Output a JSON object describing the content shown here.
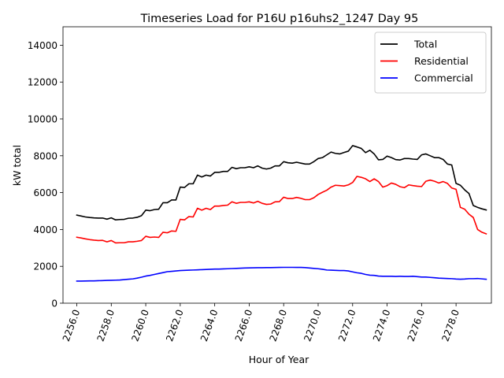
{
  "chart_data": {
    "type": "line",
    "title": "Timeseries Load for P16U p16uhs2_1247  Day 95",
    "xlabel": "Hour of Year",
    "ylabel": "kW total",
    "xlim": [
      2255.2,
      2280.05
    ],
    "ylim": [
      0,
      15000
    ],
    "xticks": [
      2256,
      2258,
      2260,
      2262,
      2264,
      2266,
      2268,
      2270,
      2272,
      2274,
      2276,
      2278
    ],
    "xtick_labels": [
      "2256.0",
      "2258.0",
      "2260.0",
      "2262.0",
      "2264.0",
      "2266.0",
      "2268.0",
      "2270.0",
      "2272.0",
      "2274.0",
      "2276.0",
      "2278.0"
    ],
    "yticks": [
      0,
      2000,
      4000,
      6000,
      8000,
      10000,
      12000,
      14000
    ],
    "ytick_labels": [
      "0",
      "2000",
      "4000",
      "6000",
      "8000",
      "10000",
      "12000",
      "14000"
    ],
    "legend_position": "top-right",
    "x": [
      2256.0,
      2256.25,
      2256.5,
      2256.75,
      2257.0,
      2257.25,
      2257.5,
      2257.75,
      2258.0,
      2258.25,
      2258.5,
      2258.75,
      2259.0,
      2259.25,
      2259.5,
      2259.75,
      2260.0,
      2260.25,
      2260.5,
      2260.75,
      2261.0,
      2261.25,
      2261.5,
      2261.75,
      2262.0,
      2262.25,
      2262.5,
      2262.75,
      2263.0,
      2263.25,
      2263.5,
      2263.75,
      2264.0,
      2264.25,
      2264.5,
      2264.75,
      2265.0,
      2265.25,
      2265.5,
      2265.75,
      2266.0,
      2266.25,
      2266.5,
      2266.75,
      2267.0,
      2267.25,
      2267.5,
      2267.75,
      2268.0,
      2268.25,
      2268.5,
      2268.75,
      2269.0,
      2269.25,
      2269.5,
      2269.75,
      2270.0,
      2270.25,
      2270.5,
      2270.75,
      2271.0,
      2271.25,
      2271.5,
      2271.75,
      2272.0,
      2272.25,
      2272.5,
      2272.75,
      2273.0,
      2273.25,
      2273.5,
      2273.75,
      2274.0,
      2274.25,
      2274.5,
      2274.75,
      2275.0,
      2275.25,
      2275.5,
      2275.75,
      2276.0,
      2276.25,
      2276.5,
      2276.75,
      2277.0,
      2277.25,
      2277.5,
      2277.75,
      2278.0,
      2278.25,
      2278.5,
      2278.75,
      2279.0,
      2279.25,
      2279.5,
      2279.75
    ],
    "series": [
      {
        "name": "Total",
        "color": "#000000",
        "values": [
          4780,
          4730,
          4680,
          4650,
          4630,
          4620,
          4620,
          4560,
          4630,
          4520,
          4540,
          4550,
          4610,
          4620,
          4660,
          4750,
          5050,
          5020,
          5080,
          5100,
          5450,
          5450,
          5600,
          5600,
          6300,
          6280,
          6480,
          6480,
          6950,
          6850,
          6950,
          6900,
          7100,
          7100,
          7150,
          7150,
          7370,
          7300,
          7350,
          7350,
          7400,
          7350,
          7450,
          7330,
          7280,
          7330,
          7450,
          7450,
          7680,
          7620,
          7600,
          7650,
          7600,
          7550,
          7550,
          7680,
          7850,
          7900,
          8050,
          8200,
          8130,
          8100,
          8180,
          8250,
          8550,
          8480,
          8400,
          8170,
          8300,
          8100,
          7780,
          7800,
          7980,
          7900,
          7790,
          7770,
          7850,
          7850,
          7820,
          7800,
          8050,
          8100,
          8000,
          7900,
          7900,
          7800,
          7550,
          7500,
          6500,
          6400,
          6150,
          5950,
          5300,
          5200,
          5120,
          5060
        ]
      },
      {
        "name": "Residential",
        "color": "#ff0000",
        "values": [
          3580,
          3540,
          3490,
          3450,
          3420,
          3400,
          3410,
          3330,
          3400,
          3270,
          3280,
          3280,
          3330,
          3330,
          3360,
          3400,
          3630,
          3570,
          3590,
          3570,
          3850,
          3820,
          3920,
          3900,
          4550,
          4520,
          4700,
          4680,
          5150,
          5050,
          5150,
          5080,
          5270,
          5270,
          5300,
          5320,
          5500,
          5420,
          5470,
          5470,
          5500,
          5440,
          5530,
          5420,
          5360,
          5380,
          5500,
          5510,
          5750,
          5680,
          5680,
          5740,
          5690,
          5620,
          5620,
          5720,
          5900,
          6020,
          6130,
          6300,
          6400,
          6380,
          6360,
          6420,
          6550,
          6880,
          6830,
          6750,
          6600,
          6750,
          6600,
          6300,
          6380,
          6520,
          6450,
          6320,
          6270,
          6420,
          6380,
          6350,
          6330,
          6620,
          6680,
          6620,
          6520,
          6600,
          6500,
          6250,
          6180,
          5200,
          5100,
          4830,
          4650,
          4000,
          3850,
          3760
        ]
      },
      {
        "name": "Commercial",
        "color": "#0000ff",
        "values": [
          1200,
          1200,
          1205,
          1210,
          1210,
          1220,
          1225,
          1235,
          1240,
          1250,
          1260,
          1280,
          1300,
          1320,
          1360,
          1410,
          1470,
          1510,
          1560,
          1610,
          1660,
          1710,
          1730,
          1750,
          1770,
          1780,
          1790,
          1800,
          1810,
          1820,
          1830,
          1840,
          1850,
          1850,
          1860,
          1870,
          1880,
          1890,
          1900,
          1910,
          1915,
          1920,
          1925,
          1925,
          1930,
          1930,
          1935,
          1940,
          1945,
          1945,
          1945,
          1940,
          1940,
          1930,
          1910,
          1890,
          1870,
          1840,
          1800,
          1790,
          1780,
          1770,
          1770,
          1750,
          1700,
          1650,
          1620,
          1560,
          1520,
          1510,
          1470,
          1460,
          1460,
          1460,
          1450,
          1460,
          1450,
          1450,
          1460,
          1440,
          1420,
          1420,
          1400,
          1380,
          1360,
          1350,
          1340,
          1330,
          1310,
          1300,
          1310,
          1330,
          1330,
          1340,
          1320,
          1300
        ]
      }
    ]
  }
}
